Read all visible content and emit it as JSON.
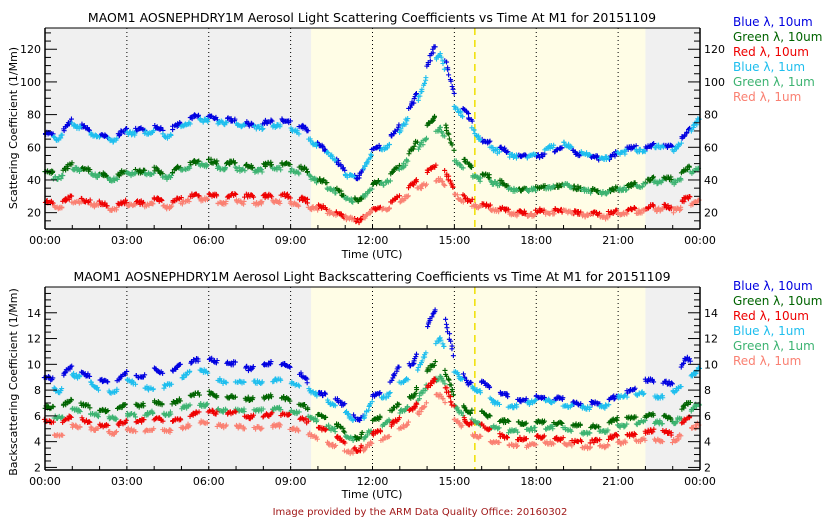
{
  "credit": "Image provided by the ARM Data Quality Office: 20160302",
  "legend": [
    {
      "label": "Blue λ, 10um",
      "color": "#0000e0"
    },
    {
      "label": "Green λ, 10um",
      "color": "#006400"
    },
    {
      "label": "Red λ, 10um",
      "color": "#ee0000"
    },
    {
      "label": "Blue λ, 1um",
      "color": "#1ebeee"
    },
    {
      "label": "Green λ, 1um",
      "color": "#3cb371"
    },
    {
      "label": "Red λ, 1um",
      "color": "#fa8072"
    }
  ],
  "chart_data": [
    {
      "type": "scatter",
      "title": "MAOM1 AOSNEPHDRY1M Aerosol Light Scattering Coefficients vs Time At M1 for 20151109",
      "xlabel": "Time (UTC)",
      "ylabel": "Scattering Coefficient (1/Mm)",
      "xlim": [
        0,
        24
      ],
      "ylim": [
        10,
        133
      ],
      "x_tick_labels": [
        "00:00",
        "03:00",
        "06:00",
        "09:00",
        "12:00",
        "15:00",
        "18:00",
        "21:00",
        "00:00"
      ],
      "x_ticks": [
        0,
        3,
        6,
        9,
        12,
        15,
        18,
        21,
        24
      ],
      "y_ticks": [
        20,
        40,
        60,
        80,
        100,
        120
      ],
      "y_minor_step": 5,
      "daylight_shading": [
        9.75,
        22.0
      ],
      "dashed_marker_hour": 15.75,
      "grid": "vertical dotted every 3 h",
      "legend_position": "right",
      "x": [
        0,
        0.5,
        1,
        1.5,
        2,
        2.5,
        3,
        3.5,
        4,
        4.5,
        5,
        5.5,
        6,
        6.5,
        7,
        7.5,
        8,
        8.5,
        9,
        9.5,
        10,
        10.5,
        11,
        11.5,
        12,
        12.5,
        13,
        13.5,
        14,
        14.25,
        14.5,
        15,
        15.5,
        16,
        16.5,
        17,
        17.5,
        18,
        18.5,
        19,
        19.5,
        20,
        20.5,
        21,
        21.5,
        22,
        22.5,
        23,
        23.5,
        24
      ],
      "series": [
        {
          "name": "Blue λ, 10um",
          "values": [
            69,
            67,
            77,
            72,
            67,
            66,
            71,
            71,
            73,
            70,
            75,
            79,
            79,
            77,
            77,
            74,
            75,
            77,
            75,
            72,
            62,
            56,
            45,
            41,
            58,
            62,
            74,
            88,
            110,
            120,
            126,
            90,
            80,
            64,
            62,
            57,
            55,
            54,
            56,
            60,
            56,
            55,
            52,
            57,
            60,
            60,
            62,
            60,
            69,
            80
          ]
        },
        {
          "name": "Green λ, 10um",
          "values": [
            45,
            44,
            50,
            47,
            44,
            42,
            46,
            45,
            47,
            43,
            49,
            51,
            52,
            50,
            51,
            48,
            49,
            51,
            49,
            47,
            41,
            37,
            30,
            27,
            38,
            40,
            49,
            60,
            74,
            78,
            82,
            57,
            50,
            43,
            42,
            35,
            34,
            35,
            36,
            37,
            35,
            34,
            33,
            35,
            37,
            39,
            42,
            41,
            47,
            53
          ]
        },
        {
          "name": "Red λ, 10um",
          "values": [
            27,
            26,
            30,
            27,
            26,
            24,
            27,
            26,
            29,
            26,
            29,
            31,
            31,
            30,
            31,
            30,
            30,
            31,
            30,
            28,
            24,
            22,
            17,
            15,
            22,
            25,
            30,
            38,
            45,
            48,
            51,
            34,
            28,
            25,
            24,
            21,
            20,
            21,
            22,
            21,
            20,
            20,
            19,
            21,
            22,
            23,
            25,
            23,
            29,
            31
          ]
        },
        {
          "name": "Blue λ, 1um",
          "values": [
            67,
            65,
            74,
            70,
            66,
            64,
            69,
            68,
            70,
            66,
            72,
            77,
            76,
            75,
            74,
            72,
            72,
            73,
            71,
            68,
            60,
            55,
            43,
            42,
            57,
            60,
            70,
            83,
            103,
            112,
            117,
            85,
            75,
            63,
            58,
            55,
            54,
            55,
            60,
            63,
            57,
            55,
            53,
            56,
            58,
            58,
            61,
            58,
            66,
            78
          ]
        },
        {
          "name": "Green λ, 1um",
          "values": [
            43,
            41,
            47,
            45,
            42,
            40,
            44,
            43,
            44,
            41,
            46,
            49,
            49,
            47,
            47,
            45,
            46,
            47,
            46,
            44,
            39,
            34,
            29,
            26,
            36,
            38,
            46,
            56,
            66,
            69,
            72,
            52,
            44,
            40,
            38,
            34,
            34,
            34,
            35,
            38,
            34,
            33,
            32,
            34,
            35,
            37,
            39,
            38,
            42,
            48
          ]
        },
        {
          "name": "Red λ, 1um",
          "values": [
            25,
            23,
            27,
            25,
            24,
            22,
            25,
            24,
            26,
            23,
            26,
            28,
            28,
            26,
            27,
            25,
            26,
            27,
            26,
            24,
            22,
            20,
            17,
            15,
            21,
            22,
            27,
            33,
            38,
            40,
            40,
            31,
            25,
            23,
            22,
            20,
            18,
            19,
            20,
            21,
            19,
            18,
            17,
            19,
            20,
            21,
            22,
            21,
            24,
            28
          ]
        }
      ]
    },
    {
      "type": "scatter",
      "title": "MAOM1 AOSNEPHDRY1M Aerosol Light Backscattering Coefficients vs Time At M1 for 20151109",
      "xlabel": "Time (UTC)",
      "ylabel": "Backscattering Coefficient (1/Mm)",
      "xlim": [
        0,
        24
      ],
      "ylim": [
        1.8,
        16
      ],
      "x_tick_labels": [
        "00:00",
        "03:00",
        "06:00",
        "09:00",
        "12:00",
        "15:00",
        "18:00",
        "21:00",
        "00:00"
      ],
      "x_ticks": [
        0,
        3,
        6,
        9,
        12,
        15,
        18,
        21,
        24
      ],
      "y_ticks": [
        2,
        4,
        6,
        8,
        10,
        12,
        14
      ],
      "y_minor_step": 0.5,
      "daylight_shading": [
        9.75,
        22.0
      ],
      "dashed_marker_hour": 15.75,
      "grid": "vertical dotted every 3 h",
      "legend_position": "right",
      "x": [
        0,
        0.5,
        1,
        1.5,
        2,
        2.5,
        3,
        3.5,
        4,
        4.5,
        5,
        5.5,
        6,
        6.5,
        7,
        7.5,
        8,
        8.5,
        9,
        9.5,
        10,
        10.5,
        11,
        11.5,
        12,
        12.5,
        13,
        13.5,
        14,
        14.25,
        14.5,
        15,
        15.5,
        16,
        16.5,
        17,
        17.5,
        18,
        18.5,
        19,
        19.5,
        20,
        20.5,
        21,
        21.5,
        22,
        22.5,
        23,
        23.5,
        24
      ],
      "series": [
        {
          "name": "Blue λ, 10um",
          "values": [
            9.0,
            8.7,
            10.0,
            9.2,
            8.8,
            8.5,
            9.4,
            9.0,
            9.6,
            9.2,
            10.0,
            10.3,
            10.5,
            10.0,
            10.1,
            9.6,
            10.0,
            10.2,
            9.8,
            9.0,
            7.8,
            7.5,
            6.8,
            5.6,
            7.5,
            8.0,
            10.0,
            10.0,
            13.0,
            14.0,
            15.0,
            10.5,
            8.5,
            8.7,
            8.0,
            7.5,
            7.2,
            7.5,
            7.3,
            7.4,
            6.9,
            7.0,
            7.0,
            7.6,
            8.0,
            8.8,
            8.7,
            8.5,
            10.5,
            9.5
          ]
        },
        {
          "name": "Blue λ, 1um",
          "values": [
            8.7,
            7.8,
            9.2,
            8.8,
            8.0,
            7.8,
            8.8,
            8.3,
            8.0,
            8.4,
            9.0,
            9.6,
            9.4,
            8.6,
            8.6,
            8.6,
            8.6,
            8.8,
            8.6,
            8.2,
            7.6,
            6.9,
            6.3,
            5.2,
            7.2,
            7.5,
            8.5,
            9.0,
            11.0,
            11.5,
            12.0,
            9.5,
            8.3,
            7.8,
            7.0,
            6.7,
            6.8,
            7.2,
            7.2,
            6.8,
            6.7,
            6.6,
            6.7,
            7.5,
            7.6,
            7.8,
            7.4,
            7.8,
            8.6,
            9.8
          ]
        },
        {
          "name": "Green λ, 10um",
          "values": [
            6.7,
            6.6,
            7.3,
            6.8,
            6.5,
            6.3,
            6.9,
            6.8,
            7.1,
            6.8,
            7.3,
            7.7,
            7.8,
            7.4,
            7.5,
            7.3,
            7.4,
            7.6,
            7.2,
            6.8,
            6.1,
            5.7,
            4.8,
            4.2,
            5.7,
            6.0,
            7.0,
            7.6,
            9.5,
            10.0,
            10.5,
            7.5,
            6.3,
            6.4,
            5.6,
            5.6,
            5.4,
            5.6,
            5.5,
            5.4,
            5.3,
            5.2,
            5.3,
            5.8,
            5.8,
            6.0,
            6.3,
            5.6,
            7.0,
            7.2
          ]
        },
        {
          "name": "Green λ, 1um",
          "values": [
            6.2,
            5.8,
            6.5,
            6.3,
            6.0,
            5.8,
            6.1,
            6.0,
            6.3,
            6.1,
            6.6,
            6.9,
            6.8,
            6.4,
            6.5,
            6.4,
            6.5,
            6.6,
            6.4,
            6.1,
            5.6,
            5.0,
            4.5,
            3.9,
            5.0,
            5.5,
            6.3,
            6.8,
            8.4,
            8.7,
            9.0,
            6.7,
            5.8,
            5.3,
            5.1,
            4.8,
            4.9,
            5.0,
            5.1,
            5.0,
            4.7,
            4.7,
            4.8,
            5.2,
            5.3,
            5.6,
            5.5,
            5.4,
            6.2,
            7.0
          ]
        },
        {
          "name": "Red λ, 10um",
          "values": [
            5.6,
            5.4,
            6.0,
            5.6,
            5.3,
            5.1,
            5.7,
            5.6,
            5.8,
            5.6,
            5.8,
            6.2,
            6.4,
            6.1,
            6.3,
            5.9,
            6.0,
            6.2,
            6.0,
            5.7,
            5.1,
            4.7,
            3.8,
            3.3,
            4.6,
            5.0,
            5.9,
            6.6,
            8.2,
            8.8,
            9.2,
            6.5,
            5.4,
            5.3,
            4.6,
            4.3,
            4.2,
            4.4,
            4.3,
            4.2,
            4.0,
            4.0,
            4.2,
            4.5,
            4.5,
            4.7,
            5.0,
            4.6,
            5.8,
            6.2
          ]
        },
        {
          "name": "Red λ, 1um",
          "values": [
            4.8,
            4.4,
            5.2,
            5.1,
            4.9,
            4.6,
            5.0,
            4.8,
            5.0,
            4.8,
            5.0,
            5.5,
            5.5,
            5.2,
            5.2,
            5.0,
            5.1,
            5.3,
            5.0,
            4.8,
            4.2,
            3.8,
            3.3,
            3.0,
            4.0,
            4.3,
            5.0,
            5.7,
            7.0,
            7.5,
            7.6,
            5.8,
            4.7,
            4.3,
            3.9,
            3.8,
            3.6,
            3.8,
            3.9,
            3.9,
            3.6,
            3.5,
            3.6,
            3.9,
            4.0,
            4.2,
            4.1,
            4.0,
            4.8,
            5.4
          ]
        }
      ]
    }
  ]
}
